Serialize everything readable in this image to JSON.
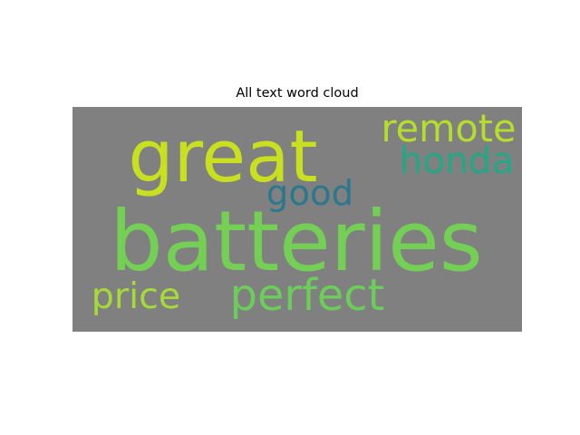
{
  "chart_data": {
    "type": "wordcloud",
    "title": "All text word cloud",
    "background_color": "#808080",
    "words": [
      {
        "text": "batteries",
        "weight": 1.0,
        "color": "#74d055"
      },
      {
        "text": "great",
        "weight": 0.86,
        "color": "#c8e020"
      },
      {
        "text": "perfect",
        "weight": 0.52,
        "color": "#6ccd5a"
      },
      {
        "text": "remote",
        "weight": 0.45,
        "color": "#b5de2b"
      },
      {
        "text": "honda",
        "weight": 0.44,
        "color": "#22a884"
      },
      {
        "text": "price",
        "weight": 0.43,
        "color": "#a5db36"
      },
      {
        "text": "good",
        "weight": 0.42,
        "color": "#2a788e"
      }
    ]
  }
}
